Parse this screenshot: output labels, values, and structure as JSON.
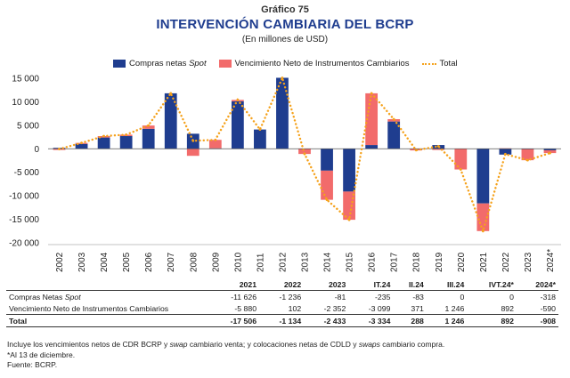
{
  "header": {
    "label": "Gráfico 75",
    "title": "INTERVENCIÓN CAMBIARIA DEL BCRP",
    "subtitle": "(En millones de USD)"
  },
  "colors": {
    "compras": "#1f3d8f",
    "vencimiento": "#f26b6b",
    "total": "#f5a21c"
  },
  "chart_data": {
    "type": "bar",
    "stacked": true,
    "categories": [
      "2002",
      "2003",
      "2004",
      "2005",
      "2006",
      "2007",
      "2008",
      "2009",
      "2010",
      "2011",
      "2012",
      "2013",
      "2014",
      "2015",
      "2016",
      "2017",
      "2018",
      "2019",
      "2020",
      "2021",
      "2022",
      "2023",
      "2024*"
    ],
    "series": [
      {
        "name": "Compras netas Spot",
        "values": [
          200,
          1050,
          2400,
          2700,
          4250,
          11800,
          3200,
          100,
          10100,
          4100,
          15100,
          -5,
          -4650,
          -9100,
          800,
          5800,
          50,
          800,
          0,
          -11626,
          -1236,
          -81,
          -318
        ]
      },
      {
        "name": "Vencimiento Neto de Instrumentos Cambiarios",
        "values": [
          -250,
          200,
          300,
          300,
          700,
          0,
          -1500,
          1800,
          300,
          0,
          0,
          -1100,
          -6200,
          -6000,
          11000,
          500,
          -350,
          -250,
          -4400,
          -5880,
          102,
          -2352,
          -590
        ]
      },
      {
        "name": "Total",
        "values": [
          -50,
          1250,
          2700,
          3000,
          4950,
          11800,
          1700,
          1900,
          10400,
          4100,
          15100,
          -1105,
          -10850,
          -15100,
          11800,
          6300,
          -300,
          550,
          -4400,
          -17506,
          -1134,
          -2433,
          -908
        ]
      }
    ],
    "yticks": [
      "15 000",
      "10 000",
      "5 000",
      "0",
      "-5 000",
      "-10 000",
      "-15 000",
      "-20 000"
    ],
    "ylim": [
      -20000,
      15000
    ],
    "legend_position": "top"
  },
  "legend": {
    "compras_prefix": "Compras netas ",
    "compras_italic": "Spot",
    "vencimiento": "Vencimiento Neto de Instrumentos Cambiarios",
    "total": "Total"
  },
  "table": {
    "columns": [
      "2021",
      "2022",
      "2023",
      "IT.24",
      "II.24",
      "III.24",
      "IVT.24*",
      "2024*"
    ],
    "rows": [
      {
        "label_prefix": "Compras Netas ",
        "label_italic": "Spot",
        "values": [
          "-11 626",
          "-1 236",
          "-81",
          "-235",
          "-83",
          "0",
          "0",
          "-318"
        ]
      },
      {
        "label_prefix": "Vencimiento Neto de Instrumentos Cambiarios",
        "label_italic": "",
        "values": [
          "-5 880",
          "102",
          "-2 352",
          "-3 099",
          "371",
          "1 246",
          "892",
          "-590"
        ]
      },
      {
        "label_prefix": "Total",
        "label_italic": "",
        "values": [
          "-17 506",
          "-1 134",
          "-2 433",
          "-3 334",
          "288",
          "1 246",
          "892",
          "-908"
        ]
      }
    ]
  },
  "notes": {
    "line1_a": "Incluye los vencimientos netos de CDR BCRP y ",
    "line1_b": "swap",
    "line1_c": " cambiario venta; y colocaciones netas de CDLD y ",
    "line1_d": "swaps",
    "line1_e": " cambiario compra.",
    "line2": "*Al 13 de diciembre.",
    "line3": "Fuente: BCRP."
  }
}
